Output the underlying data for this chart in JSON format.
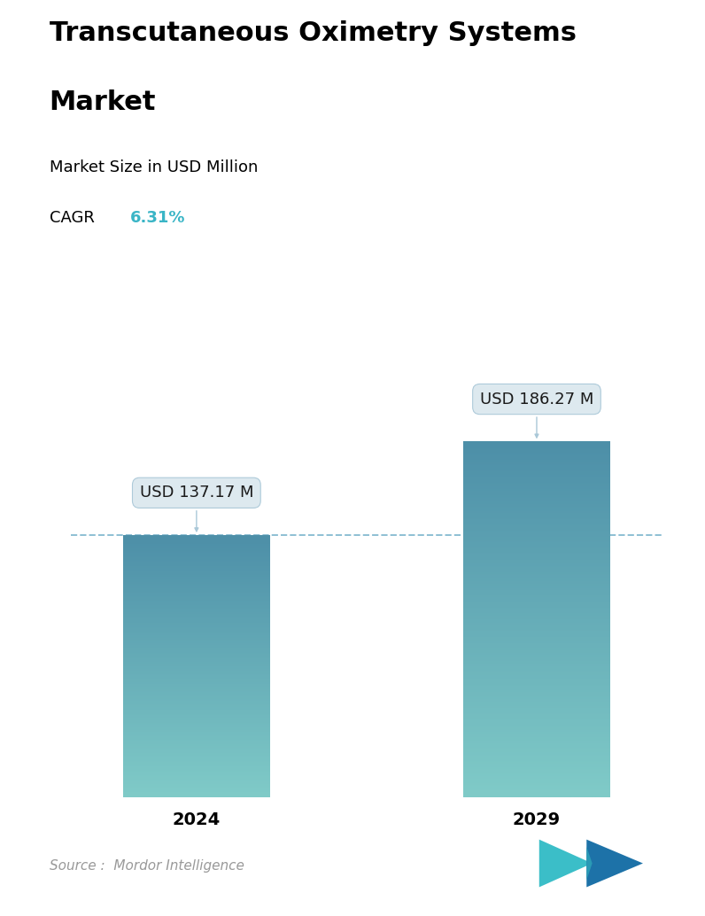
{
  "title_line1": "Transcutaneous Oximetry Systems",
  "title_line2": "Market",
  "subtitle": "Market Size in USD Million",
  "cagr_label": "CAGR ",
  "cagr_value": "6.31%",
  "cagr_color": "#3ab5c6",
  "categories": [
    "2024",
    "2029"
  ],
  "values": [
    137.17,
    186.27
  ],
  "bar_labels": [
    "USD 137.17 M",
    "USD 186.27 M"
  ],
  "bar_top_color": "#4d8fa8",
  "bar_bottom_color": "#80cbc8",
  "dashed_line_color": "#7ab3cc",
  "dashed_line_value": 137.17,
  "background_color": "#ffffff",
  "source_text": "Source :  Mordor Intelligence",
  "source_color": "#999999",
  "title_fontsize": 22,
  "subtitle_fontsize": 13,
  "cagr_fontsize": 13,
  "tick_fontsize": 14,
  "annotation_fontsize": 13,
  "ylim": [
    0,
    240
  ],
  "x_positions": [
    0.5,
    1.85
  ],
  "bar_width": 0.58
}
